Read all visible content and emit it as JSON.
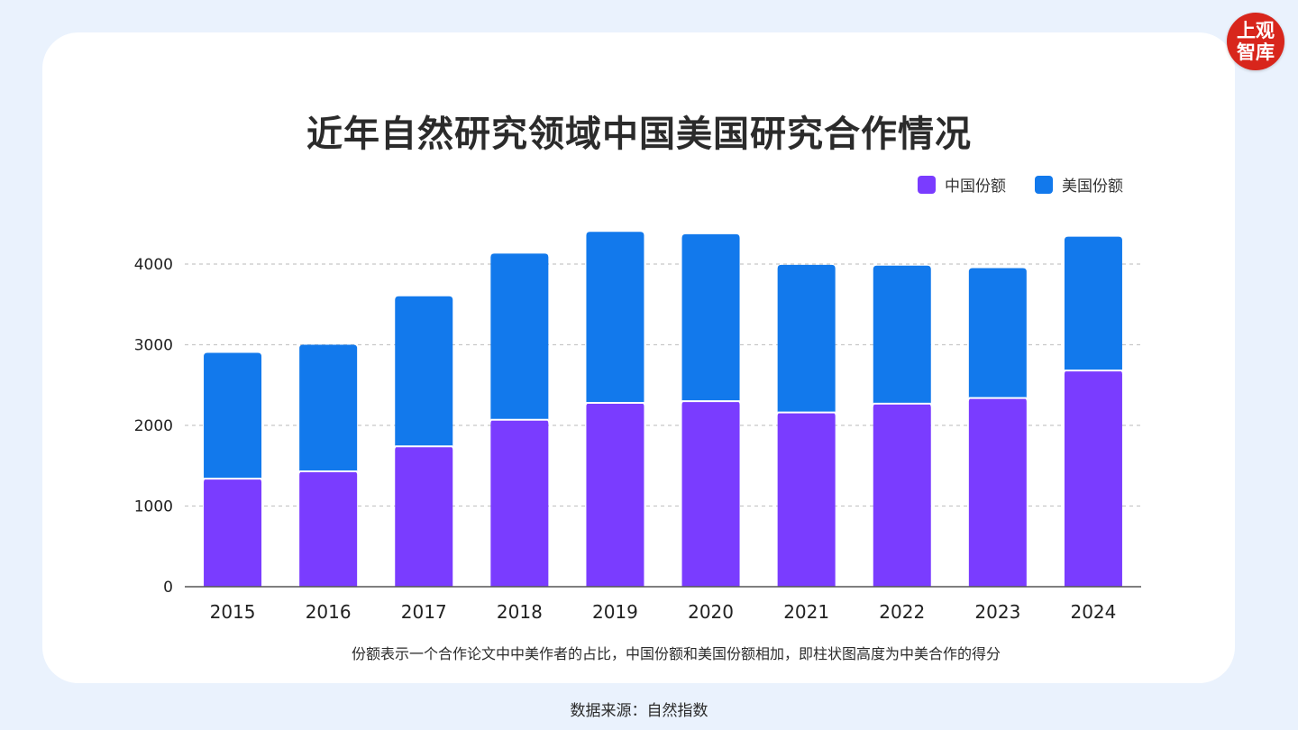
{
  "logo": {
    "line1": "上观",
    "line2": "智库"
  },
  "title": "近年自然研究领域中国美国研究合作情况",
  "legend": {
    "china": "中国份额",
    "usa": "美国份额"
  },
  "colors": {
    "china": "#7a3cff",
    "usa": "#1279ec",
    "grid": "#c8c8c8",
    "axis": "#555555"
  },
  "note": "份额表示一个合作论文中中美作者的占比，中国份额和美国份额相加，即柱状图高度为中美合作的得分",
  "source": "数据来源：自然指数",
  "chart_data": {
    "type": "bar",
    "stacked": true,
    "title": "近年自然研究领域中国美国研究合作情况",
    "categories": [
      "2015",
      "2016",
      "2017",
      "2018",
      "2019",
      "2020",
      "2021",
      "2022",
      "2023",
      "2024"
    ],
    "series": [
      {
        "name": "中国份额",
        "values": [
          1340,
          1430,
          1740,
          2070,
          2280,
          2300,
          2160,
          2270,
          2340,
          2680
        ]
      },
      {
        "name": "美国份额",
        "values": [
          1560,
          1570,
          1860,
          2060,
          2120,
          2070,
          1830,
          1710,
          1610,
          1660
        ]
      }
    ],
    "yticks": [
      0,
      1000,
      2000,
      3000,
      4000
    ],
    "ylim": [
      0,
      4400
    ],
    "xlabel": "",
    "ylabel": "",
    "legend_position": "top-right",
    "grid": true
  }
}
